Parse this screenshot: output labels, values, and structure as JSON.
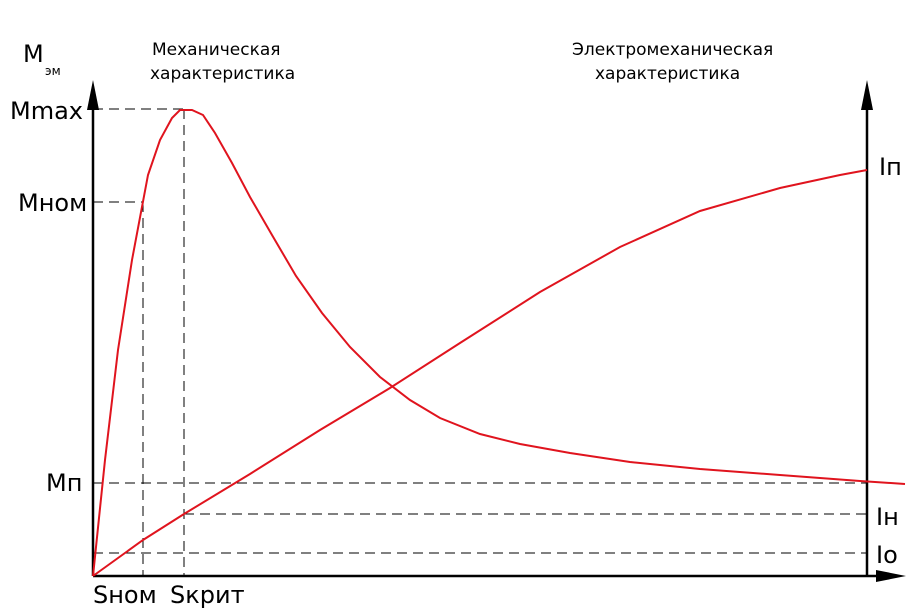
{
  "labels": {
    "y_axis_main": "M",
    "y_axis_sub": "эм",
    "m_max": "Mmax",
    "m_nom": "Mном",
    "m_p": "Mп",
    "s_nom": "Sном",
    "s_krit": "Sкрит",
    "i_p": "Iп",
    "i_n": "Iн",
    "i_o": "Io",
    "mech_caption_line1": "Механическая",
    "mech_caption_line2": "характеристика",
    "electro_caption_line1": "Электромеханическая",
    "electro_caption_line2": "характеристика"
  },
  "colors": {
    "curve": "#e0141e",
    "axes": "#000000"
  }
}
